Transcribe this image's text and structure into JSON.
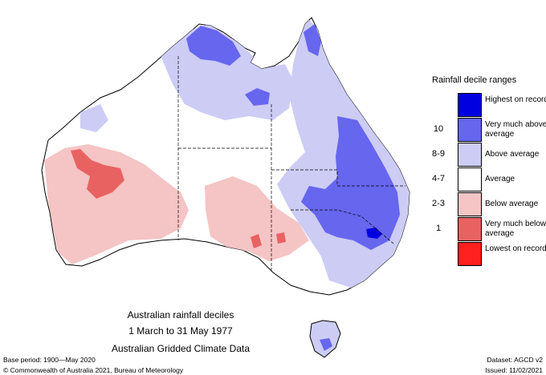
{
  "legend": {
    "title": "Rainfall decile ranges",
    "items": [
      {
        "code": "",
        "label": "Highest on record",
        "color": "#0000e0"
      },
      {
        "code": "10",
        "label": "Very much above average",
        "color": "#6666ee"
      },
      {
        "code": "8-9",
        "label": "Above average",
        "color": "#ccccf5"
      },
      {
        "code": "4-7",
        "label": "Average",
        "color": "#ffffff"
      },
      {
        "code": "2-3",
        "label": "Below average",
        "color": "#f5c4c4"
      },
      {
        "code": "1",
        "label": "Very much below average",
        "color": "#e86262"
      },
      {
        "code": "",
        "label": "Lowest on record",
        "color": "#ff2020"
      }
    ]
  },
  "caption": {
    "line1": "Australian rainfall deciles",
    "line2": "1 March to 31 May 1977",
    "line3": "Australian Gridded Climate Data"
  },
  "footer": {
    "base_period": "Base period: 1900—May 2020",
    "dataset": "Dataset: AGCD v2",
    "copyright": "© Commonwealth of Australia 2021, Bureau of Meteorology",
    "issued": "Issued: 11/02/2021"
  }
}
